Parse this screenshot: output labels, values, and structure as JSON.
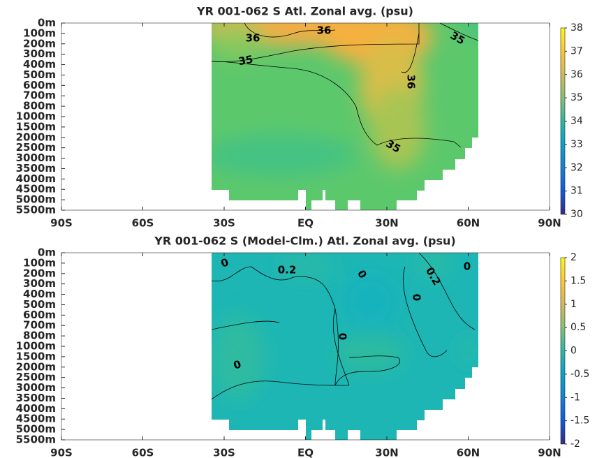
{
  "chart_data": [
    {
      "type": "contour",
      "title": "YR 001-062 S Atl. Zonal avg. (psu)",
      "xlim": [
        -90,
        90
      ],
      "xticks": [
        {
          "value": -90,
          "label": "90S"
        },
        {
          "value": -60,
          "label": "60S"
        },
        {
          "value": -30,
          "label": "30S"
        },
        {
          "value": 0,
          "label": "EQ"
        },
        {
          "value": 30,
          "label": "30N"
        },
        {
          "value": 60,
          "label": "60N"
        },
        {
          "value": 90,
          "label": "90N"
        }
      ],
      "ylevels": [
        "0m",
        "100m",
        "200m",
        "300m",
        "400m",
        "500m",
        "600m",
        "700m",
        "800m",
        "1000m",
        "1500m",
        "2000m",
        "2500m",
        "3000m",
        "3500m",
        "4000m",
        "4500m",
        "5000m",
        "5500m"
      ],
      "colorbar": {
        "lim": [
          30,
          38
        ],
        "ticks": [
          30,
          31,
          32,
          33,
          34,
          35,
          36,
          37,
          38
        ],
        "colormap": [
          "#352a87",
          "#0f5cdd",
          "#1481d6",
          "#06a4ca",
          "#2eb7a4",
          "#87bf77",
          "#d1bb59",
          "#fec832",
          "#f9fb0e"
        ]
      },
      "contour_labels": [
        36,
        36,
        35,
        35,
        36,
        35
      ]
    },
    {
      "type": "contour",
      "title": "YR 001-062 S (Model-Clm.) Atl. Zonal avg. (psu)",
      "xlim": [
        -90,
        90
      ],
      "xticks": [
        {
          "value": -90,
          "label": "90S"
        },
        {
          "value": -60,
          "label": "60S"
        },
        {
          "value": -30,
          "label": "30S"
        },
        {
          "value": 0,
          "label": "EQ"
        },
        {
          "value": 30,
          "label": "30N"
        },
        {
          "value": 60,
          "label": "60N"
        },
        {
          "value": 90,
          "label": "90N"
        }
      ],
      "ylevels": [
        "0m",
        "100m",
        "200m",
        "300m",
        "400m",
        "500m",
        "600m",
        "700m",
        "800m",
        "1000m",
        "1500m",
        "2000m",
        "2500m",
        "3000m",
        "3500m",
        "4000m",
        "4500m",
        "5000m",
        "5500m"
      ],
      "colorbar": {
        "lim": [
          -2,
          2
        ],
        "ticks": [
          -2,
          -1.5,
          -1,
          -0.5,
          0,
          0.5,
          1,
          1.5,
          2
        ],
        "colormap": [
          "#352a87",
          "#0f5cdd",
          "#1481d6",
          "#06a4ca",
          "#2eb7a4",
          "#87bf77",
          "#d1bb59",
          "#fec832",
          "#f9fb0e"
        ]
      },
      "contour_labels": [
        0,
        0.2,
        0,
        0.2,
        0,
        0,
        0,
        0
      ]
    }
  ]
}
